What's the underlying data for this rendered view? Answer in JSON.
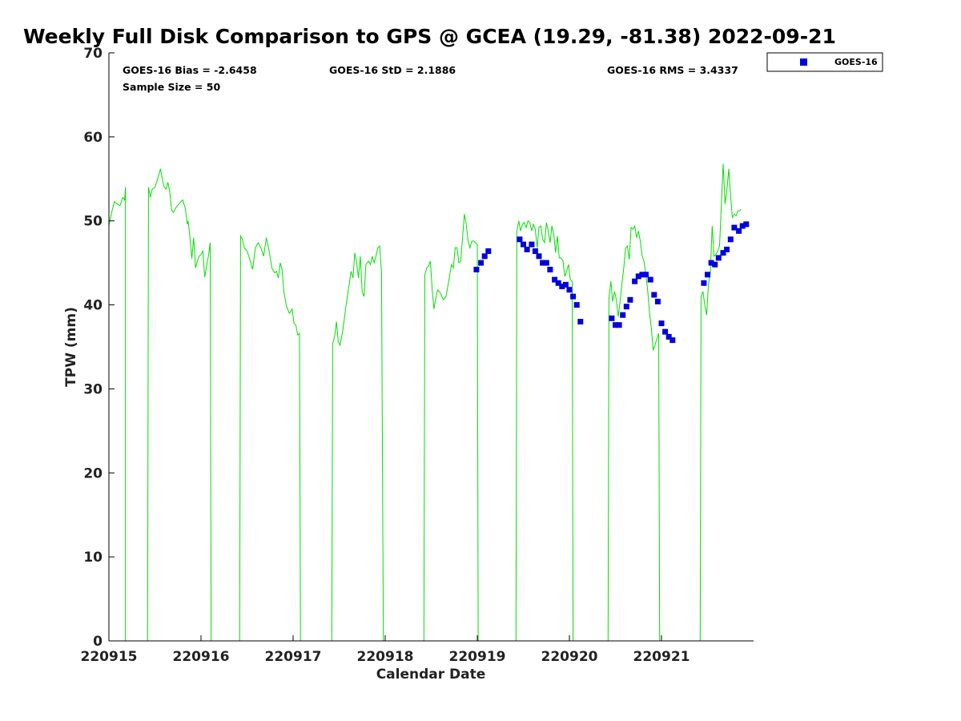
{
  "chart_data": {
    "type": "scatter",
    "title": "Weekly Full Disk Comparison to GPS @ GCEA (19.29, -81.38) 2022-09-21",
    "xlabel": "Calendar Date",
    "ylabel": "TPW (mm)",
    "xlim": [
      "220915",
      "220922"
    ],
    "ylim": [
      0,
      70
    ],
    "yticks": [
      "0",
      "10",
      "20",
      "30",
      "40",
      "50",
      "60",
      "70"
    ],
    "xticks": [
      "220915",
      "220916",
      "220917",
      "220918",
      "220919",
      "220920",
      "220921"
    ],
    "grid": false,
    "legend_position": "top-right, outside plot",
    "stats": {
      "bias": "GOES-16 Bias = -2.6458",
      "std": "GOES-16 StD = 2.1886",
      "rms": "GOES-16 RMS = 3.4337",
      "sample": "Sample Size = 50"
    },
    "legend": [
      {
        "label": "GOES-16",
        "color": "#0000dd",
        "marker": "square"
      }
    ],
    "gps_line": {
      "color": "#00e000",
      "comment_units": "x in days since 220915 00Z",
      "segments": [
        [
          [
            0.0,
            49.5
          ],
          [
            0.03,
            51.0
          ],
          [
            0.06,
            52.3
          ],
          [
            0.09,
            52.0
          ],
          [
            0.12,
            51.8
          ],
          [
            0.15,
            52.8
          ],
          [
            0.17,
            52.5
          ],
          [
            0.18,
            54.0
          ],
          [
            0.18,
            0
          ]
        ],
        [
          [
            0.42,
            0
          ],
          [
            0.43,
            54.0
          ],
          [
            0.45,
            52.8
          ],
          [
            0.47,
            53.8
          ],
          [
            0.5,
            54.0
          ],
          [
            0.53,
            55.0
          ],
          [
            0.56,
            56.2
          ],
          [
            0.58,
            55.0
          ],
          [
            0.6,
            54.0
          ],
          [
            0.62,
            53.8
          ],
          [
            0.64,
            54.6
          ],
          [
            0.66,
            53.5
          ],
          [
            0.68,
            51.3
          ],
          [
            0.7,
            51.0
          ],
          [
            0.73,
            51.6
          ],
          [
            0.76,
            52.0
          ],
          [
            0.8,
            52.5
          ],
          [
            0.83,
            51.5
          ],
          [
            0.85,
            49.6
          ],
          [
            0.86,
            50.0
          ],
          [
            0.88,
            48.0
          ],
          [
            0.9,
            45.5
          ],
          [
            0.92,
            48.0
          ],
          [
            0.94,
            44.4
          ],
          [
            0.96,
            45.2
          ],
          [
            0.98,
            45.8
          ],
          [
            1.0,
            46.0
          ],
          [
            1.02,
            46.4
          ],
          [
            1.04,
            43.3
          ],
          [
            1.06,
            44.6
          ],
          [
            1.08,
            45.8
          ],
          [
            1.1,
            47.4
          ],
          [
            1.11,
            0
          ]
        ],
        [
          [
            1.42,
            0
          ],
          [
            1.43,
            48.2
          ],
          [
            1.45,
            47.8
          ],
          [
            1.47,
            46.8
          ],
          [
            1.5,
            46.4
          ],
          [
            1.53,
            45.4
          ],
          [
            1.56,
            44.2
          ],
          [
            1.59,
            46.8
          ],
          [
            1.62,
            47.4
          ],
          [
            1.65,
            46.8
          ],
          [
            1.68,
            45.8
          ],
          [
            1.71,
            48.0
          ],
          [
            1.74,
            46.4
          ],
          [
            1.77,
            44.4
          ],
          [
            1.8,
            43.8
          ],
          [
            1.82,
            44.0
          ],
          [
            1.84,
            43.2
          ],
          [
            1.86,
            45.0
          ],
          [
            1.88,
            44.2
          ],
          [
            1.9,
            41.5
          ],
          [
            1.93,
            39.8
          ],
          [
            1.96,
            39.0
          ],
          [
            1.99,
            39.5
          ],
          [
            2.01,
            37.8
          ],
          [
            2.03,
            37.6
          ],
          [
            2.05,
            36.4
          ],
          [
            2.07,
            36.6
          ],
          [
            2.08,
            0
          ]
        ],
        [
          [
            2.42,
            0
          ],
          [
            2.43,
            35.4
          ],
          [
            2.45,
            36.2
          ],
          [
            2.47,
            38.0
          ],
          [
            2.49,
            35.6
          ],
          [
            2.51,
            35.2
          ],
          [
            2.54,
            37.0
          ],
          [
            2.57,
            39.5
          ],
          [
            2.6,
            41.8
          ],
          [
            2.63,
            44.0
          ],
          [
            2.65,
            43.2
          ],
          [
            2.67,
            46.2
          ],
          [
            2.69,
            45.0
          ],
          [
            2.71,
            43.2
          ],
          [
            2.73,
            45.8
          ],
          [
            2.75,
            41.5
          ],
          [
            2.77,
            41.0
          ],
          [
            2.79,
            44.8
          ],
          [
            2.82,
            45.2
          ],
          [
            2.84,
            44.8
          ],
          [
            2.86,
            45.8
          ],
          [
            2.88,
            45.0
          ],
          [
            2.9,
            45.8
          ],
          [
            2.92,
            46.8
          ],
          [
            2.94,
            47.0
          ],
          [
            2.96,
            43.8
          ],
          [
            2.98,
            0
          ]
        ],
        [
          [
            3.42,
            0
          ],
          [
            3.43,
            43.6
          ],
          [
            3.45,
            44.4
          ],
          [
            3.47,
            44.6
          ],
          [
            3.49,
            45.2
          ],
          [
            3.51,
            41.8
          ],
          [
            3.53,
            39.5
          ],
          [
            3.55,
            40.8
          ],
          [
            3.57,
            41.8
          ],
          [
            3.6,
            41.4
          ],
          [
            3.63,
            40.6
          ],
          [
            3.66,
            41.0
          ],
          [
            3.69,
            42.8
          ],
          [
            3.72,
            44.8
          ],
          [
            3.74,
            44.4
          ],
          [
            3.76,
            46.8
          ],
          [
            3.78,
            46.8
          ],
          [
            3.8,
            45.0
          ],
          [
            3.82,
            45.2
          ],
          [
            3.84,
            48.0
          ],
          [
            3.86,
            50.8
          ],
          [
            3.88,
            49.6
          ],
          [
            3.9,
            47.6
          ],
          [
            3.92,
            46.8
          ],
          [
            3.94,
            47.6
          ],
          [
            3.96,
            47.6
          ],
          [
            3.98,
            47.4
          ],
          [
            4.0,
            47.2
          ],
          [
            4.01,
            0
          ]
        ],
        [
          [
            4.42,
            0
          ],
          [
            4.43,
            48.8
          ],
          [
            4.45,
            50.0
          ],
          [
            4.47,
            48.8
          ],
          [
            4.49,
            49.6
          ],
          [
            4.51,
            49.8
          ],
          [
            4.53,
            49.2
          ],
          [
            4.55,
            50.0
          ],
          [
            4.57,
            49.8
          ],
          [
            4.59,
            48.8
          ],
          [
            4.61,
            49.6
          ],
          [
            4.63,
            49.0
          ],
          [
            4.65,
            46.8
          ],
          [
            4.67,
            49.2
          ],
          [
            4.69,
            49.4
          ],
          [
            4.71,
            47.8
          ],
          [
            4.73,
            47.4
          ],
          [
            4.75,
            49.8
          ],
          [
            4.77,
            48.8
          ],
          [
            4.79,
            47.4
          ],
          [
            4.81,
            49.4
          ],
          [
            4.83,
            48.4
          ],
          [
            4.85,
            46.2
          ],
          [
            4.87,
            48.2
          ],
          [
            4.89,
            45.6
          ],
          [
            4.91,
            45.6
          ],
          [
            4.93,
            45.2
          ],
          [
            4.95,
            43.4
          ],
          [
            4.97,
            44.0
          ],
          [
            4.99,
            44.8
          ],
          [
            5.01,
            43.0
          ],
          [
            5.03,
            42.8
          ],
          [
            5.04,
            0
          ]
        ],
        [
          [
            5.42,
            0
          ],
          [
            5.43,
            40.8
          ],
          [
            5.45,
            42.8
          ],
          [
            5.47,
            40.4
          ],
          [
            5.49,
            41.6
          ],
          [
            5.51,
            40.6
          ],
          [
            5.53,
            38.6
          ],
          [
            5.55,
            40.4
          ],
          [
            5.57,
            42.4
          ],
          [
            5.59,
            44.4
          ],
          [
            5.61,
            46.8
          ],
          [
            5.63,
            47.0
          ],
          [
            5.65,
            45.4
          ],
          [
            5.67,
            49.2
          ],
          [
            5.69,
            49.0
          ],
          [
            5.71,
            49.4
          ],
          [
            5.73,
            48.0
          ],
          [
            5.75,
            48.8
          ],
          [
            5.77,
            47.6
          ],
          [
            5.79,
            45.8
          ],
          [
            5.81,
            45.2
          ],
          [
            5.83,
            43.6
          ],
          [
            5.85,
            41.8
          ],
          [
            5.87,
            39.0
          ],
          [
            5.89,
            37.2
          ],
          [
            5.91,
            34.6
          ],
          [
            5.93,
            35.2
          ],
          [
            5.95,
            36.0
          ],
          [
            5.97,
            36.6
          ],
          [
            5.98,
            0
          ]
        ],
        [
          [
            6.42,
            0
          ],
          [
            6.43,
            41.0
          ],
          [
            6.45,
            41.6
          ],
          [
            6.47,
            40.0
          ],
          [
            6.49,
            38.8
          ],
          [
            6.51,
            42.4
          ],
          [
            6.53,
            43.8
          ],
          [
            6.55,
            49.4
          ],
          [
            6.57,
            45.8
          ],
          [
            6.59,
            46.0
          ],
          [
            6.61,
            46.4
          ],
          [
            6.63,
            47.0
          ],
          [
            6.65,
            52.0
          ],
          [
            6.67,
            56.8
          ],
          [
            6.69,
            52.0
          ],
          [
            6.71,
            53.6
          ],
          [
            6.73,
            56.2
          ],
          [
            6.75,
            53.0
          ],
          [
            6.77,
            50.4
          ],
          [
            6.79,
            50.8
          ],
          [
            6.81,
            50.6
          ],
          [
            6.83,
            51.2
          ],
          [
            6.85,
            51.2
          ],
          [
            6.86,
            51.4
          ]
        ]
      ]
    },
    "series": [
      {
        "name": "GOES-16",
        "color": "#0000dd",
        "x": [
          3.99,
          4.04,
          4.08,
          4.12,
          4.46,
          4.5,
          4.54,
          4.59,
          4.63,
          4.67,
          4.71,
          4.75,
          4.79,
          4.84,
          4.88,
          4.92,
          4.96,
          5.0,
          5.04,
          5.08,
          5.12,
          5.46,
          5.5,
          5.54,
          5.58,
          5.62,
          5.66,
          5.71,
          5.75,
          5.79,
          5.83,
          5.88,
          5.92,
          5.96,
          6.0,
          6.04,
          6.08,
          6.12,
          6.46,
          6.5,
          6.54,
          6.58,
          6.62,
          6.67,
          6.71,
          6.75,
          6.79,
          6.84,
          6.88,
          6.92
        ],
        "y": [
          44.2,
          45.0,
          45.8,
          46.4,
          47.8,
          47.2,
          46.6,
          47.2,
          46.4,
          45.8,
          45.0,
          45.0,
          44.2,
          43.0,
          42.6,
          42.2,
          42.4,
          41.8,
          41.0,
          40.0,
          38.0,
          38.4,
          37.6,
          37.6,
          38.8,
          39.8,
          40.6,
          42.8,
          43.4,
          43.6,
          43.6,
          43.0,
          41.2,
          40.4,
          37.8,
          36.8,
          36.2,
          35.8,
          42.6,
          43.6,
          45.0,
          44.8,
          45.6,
          46.2,
          46.6,
          47.8,
          49.2,
          48.8,
          49.4,
          49.6
        ]
      }
    ]
  }
}
